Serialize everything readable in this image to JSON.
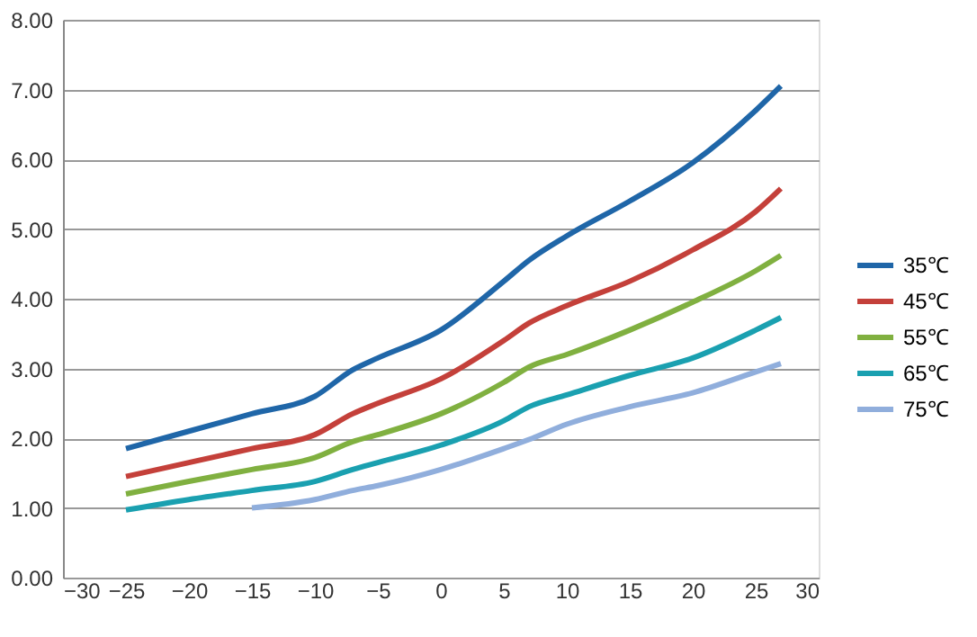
{
  "chart_data": {
    "type": "line",
    "x": [
      -25,
      -20,
      -15,
      -10,
      -7,
      -5,
      0,
      5,
      7,
      10,
      15,
      20,
      25,
      27
    ],
    "series": [
      {
        "name": "35℃",
        "color": "#1f66a8",
        "values": [
          1.85,
          2.1,
          2.35,
          2.6,
          2.98,
          3.15,
          3.55,
          4.25,
          4.55,
          4.9,
          5.4,
          5.95,
          6.7,
          7.05
        ]
      },
      {
        "name": "45℃",
        "color": "#c4403a",
        "values": [
          1.45,
          1.65,
          1.85,
          2.05,
          2.35,
          2.5,
          2.85,
          3.4,
          3.65,
          3.9,
          4.25,
          4.7,
          5.25,
          5.58
        ]
      },
      {
        "name": "55℃",
        "color": "#80b040",
        "values": [
          1.2,
          1.38,
          1.55,
          1.72,
          1.95,
          2.05,
          2.35,
          2.8,
          3.02,
          3.2,
          3.55,
          3.95,
          4.4,
          4.62
        ]
      },
      {
        "name": "65℃",
        "color": "#1aa0b0",
        "values": [
          0.97,
          1.12,
          1.25,
          1.38,
          1.55,
          1.65,
          1.9,
          2.25,
          2.45,
          2.62,
          2.9,
          3.15,
          3.55,
          3.73
        ]
      },
      {
        "name": "75℃",
        "color": "#90aedc",
        "values": [
          null,
          null,
          1.0,
          1.12,
          1.25,
          1.32,
          1.55,
          1.85,
          1.98,
          2.2,
          2.45,
          2.65,
          2.95,
          3.07
        ]
      }
    ],
    "xlim": [
      -30,
      30
    ],
    "xticks": [
      -30,
      -25,
      -20,
      -15,
      -10,
      -5,
      0,
      5,
      10,
      15,
      20,
      25,
      30
    ],
    "ylim": [
      0,
      8
    ],
    "yticks": [
      {
        "value": 0,
        "label": "0.00"
      },
      {
        "value": 1,
        "label": "1.00"
      },
      {
        "value": 2,
        "label": "2.00"
      },
      {
        "value": 3,
        "label": "3.00"
      },
      {
        "value": 4,
        "label": "4.00"
      },
      {
        "value": 5,
        "label": "5.00"
      },
      {
        "value": 6,
        "label": "6.00"
      },
      {
        "value": 7,
        "label": "7.00"
      },
      {
        "value": 8,
        "label": "8.00"
      }
    ],
    "grid": "y",
    "legend": "right",
    "marker": "none",
    "line_style": "solid"
  }
}
